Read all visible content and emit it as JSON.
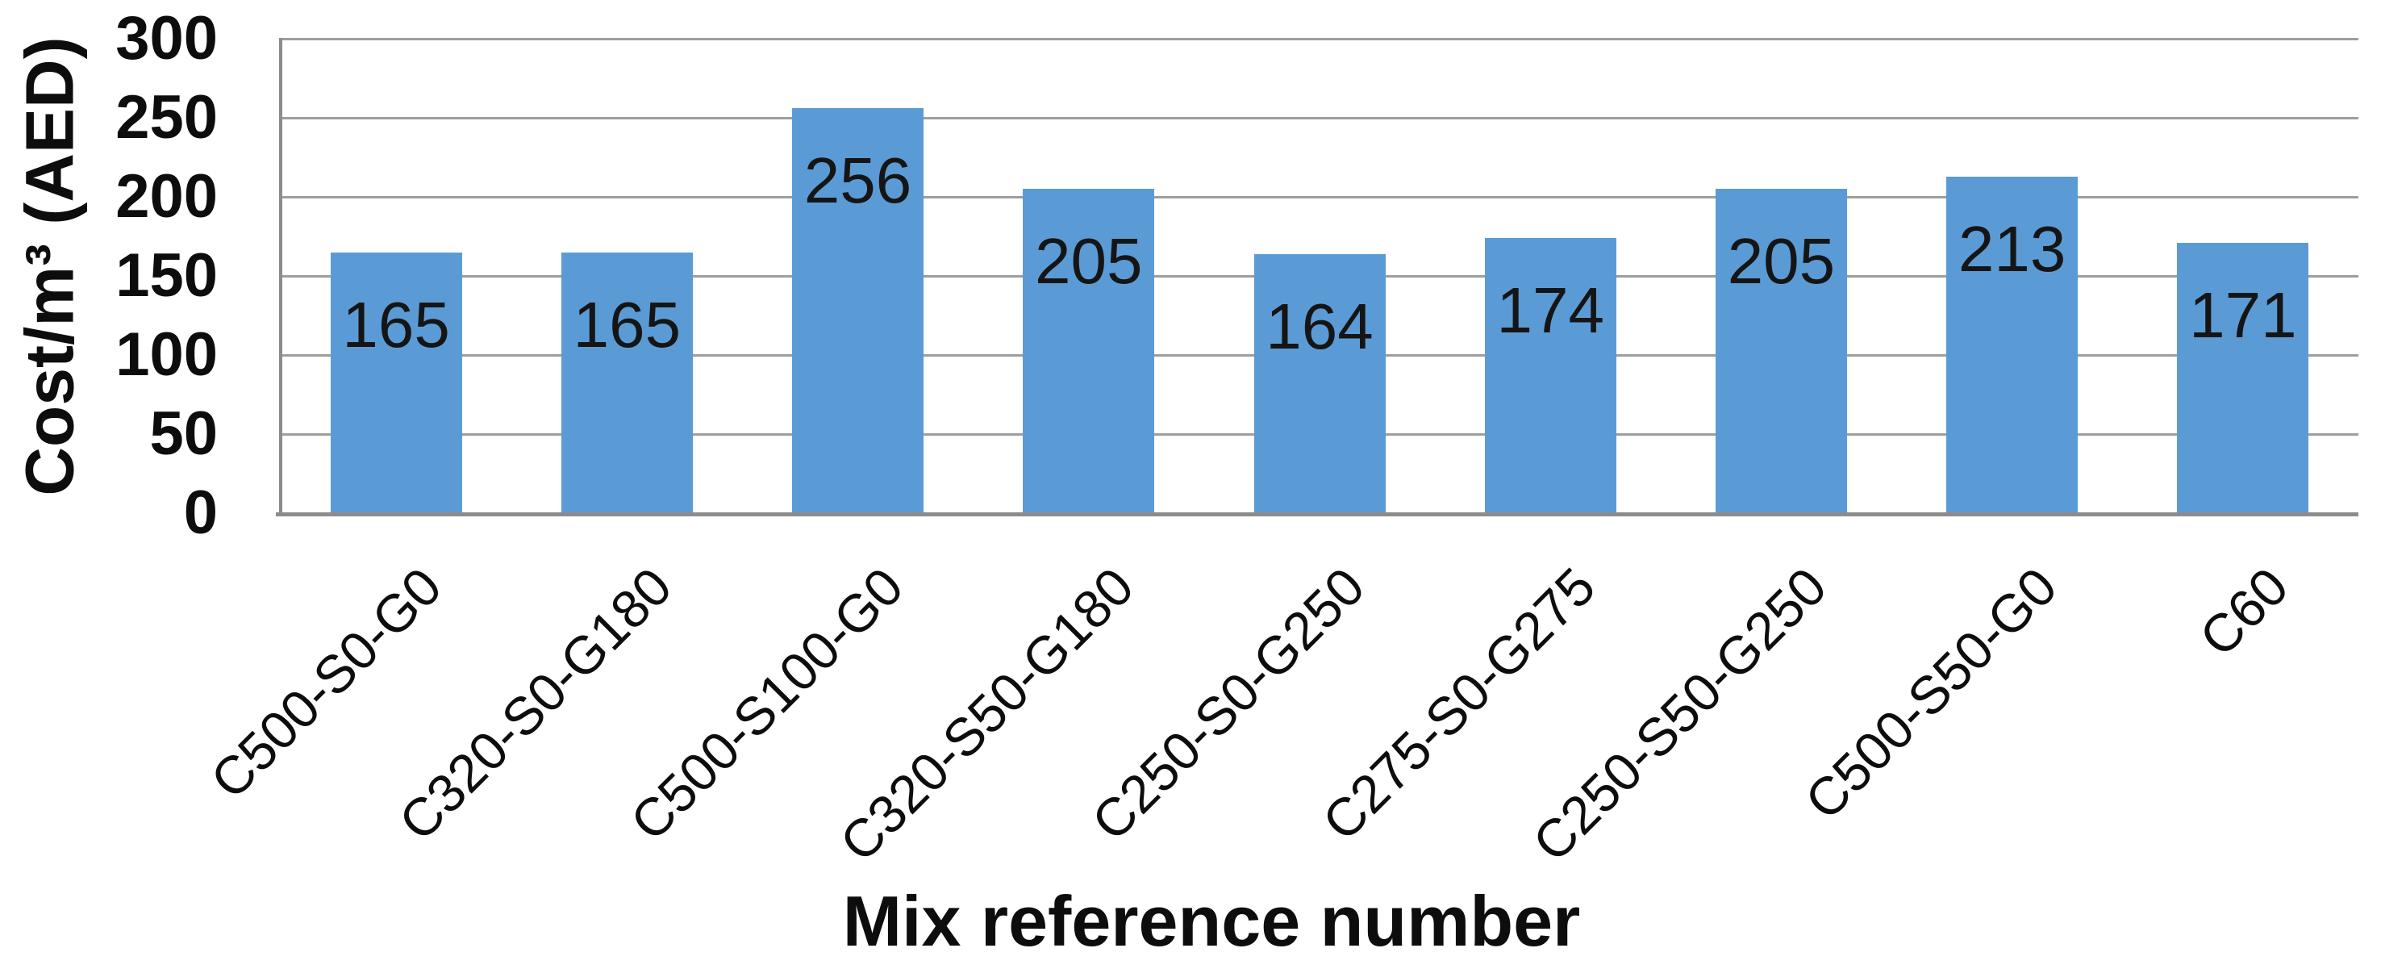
{
  "chart_data": {
    "type": "bar",
    "title": "",
    "xlabel": "Mix reference number",
    "ylabel": "Cost/m³ (AED)",
    "categories": [
      "C500-S0-G0",
      "C320-S0-G180",
      "C500-S100-G0",
      "C320-S50-G180",
      "C250-S0-G250",
      "C275-S0-G275",
      "C250-S50-G250",
      "C500-S50-G0",
      "C60"
    ],
    "values": [
      165,
      165,
      256,
      205,
      164,
      174,
      205,
      213,
      171
    ],
    "ylim": [
      0,
      300
    ],
    "yticks": [
      0,
      50,
      100,
      150,
      200,
      250,
      300
    ],
    "grid": true,
    "legend": "none",
    "data_label_position": "inside-end",
    "colors": {
      "bar": "#5b9bd5",
      "gridline": "#9e9e9e",
      "axis_line": "#8c8c8c",
      "text": "#0d0d0d",
      "background": "#ffffff"
    }
  }
}
